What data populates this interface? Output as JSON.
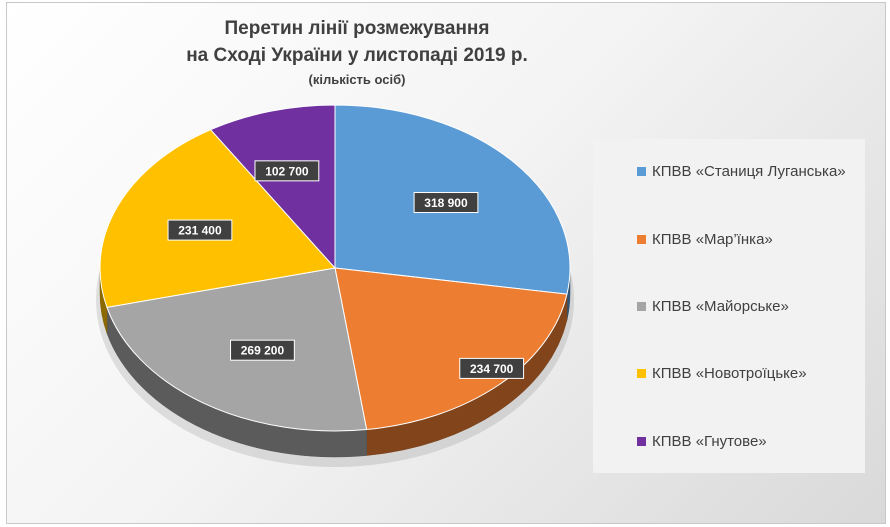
{
  "chart_data": {
    "type": "pie",
    "title": "Перетин лінії розмежування",
    "title_line2": "на Сході України у листопаді 2019 р.",
    "subtitle": "(кількість осіб)",
    "slices": [
      {
        "label": "КПВВ «Станиця Луганська»",
        "value": 318900,
        "value_label": "318 900",
        "color": "#5b9bd5"
      },
      {
        "label": "КПВВ «Мар’їнка»",
        "value": 234700,
        "value_label": "234 700",
        "color": "#ed7d31"
      },
      {
        "label": "КПВВ «Майорське»",
        "value": 269200,
        "value_label": "269 200",
        "color": "#a5a5a5"
      },
      {
        "label": "КПВВ «Новотроїцьке»",
        "value": 231400,
        "value_label": "231 400",
        "color": "#ffc000"
      },
      {
        "label": "КПВВ «Гнутове»",
        "value": 102700,
        "value_label": "102 700",
        "color": "#7030a0"
      }
    ],
    "legend_position": "right",
    "style": "3d"
  }
}
